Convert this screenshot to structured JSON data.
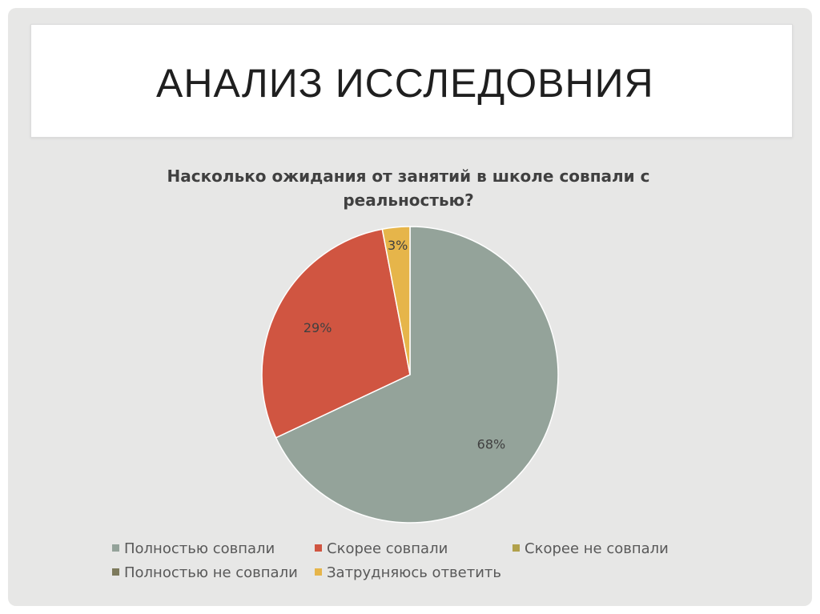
{
  "slide": {
    "title": "АНАЛИЗ ИССЛЕДОВНИЯ"
  },
  "chart_data": {
    "type": "pie",
    "title": "Насколько ожидания от занятий в школе совпали с реальностью?",
    "categories": [
      "Полностью совпали",
      "Скорее совпали",
      "Скорее не совпали",
      "Полностью не совпали",
      "Затрудняюсь ответить"
    ],
    "values": [
      68,
      29,
      0,
      0,
      3
    ],
    "labels": [
      "68%",
      "29%",
      "",
      "",
      "3%"
    ],
    "colors": [
      "#94a39a",
      "#d05541",
      "#b1a14b",
      "#7d7a5c",
      "#e6b54a"
    ],
    "legend_position": "bottom"
  }
}
